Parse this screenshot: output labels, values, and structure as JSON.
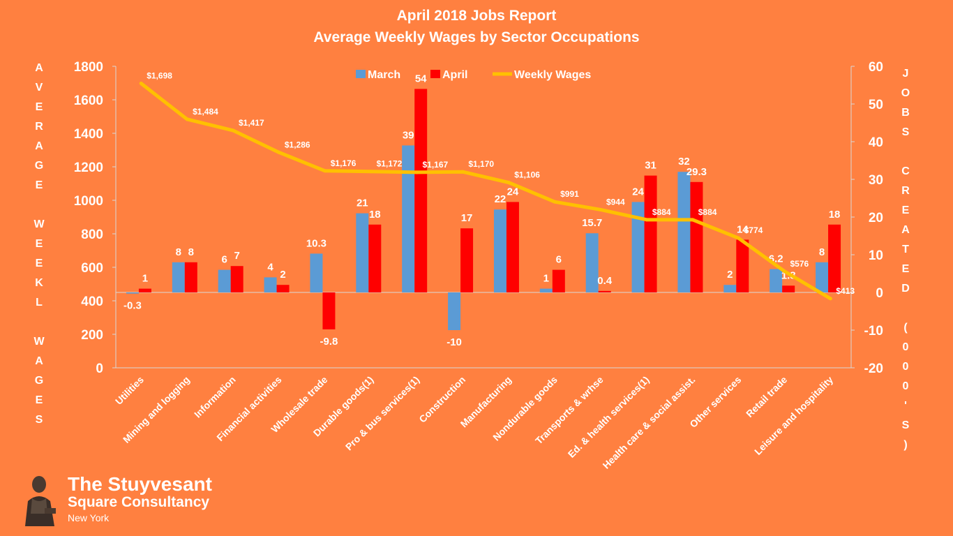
{
  "chart_data": {
    "type": "bar",
    "title": "April 2018 Jobs Report",
    "subtitle": "Average Weekly Wages by Sector Occupations",
    "ylabel_left_letters": [
      "A",
      "V",
      "E",
      "R",
      "A",
      "G",
      "E",
      "",
      "W",
      "E",
      "E",
      "K",
      "L",
      "",
      "W",
      "A",
      "G",
      "E",
      "S"
    ],
    "ylabel_right_letters": [
      "J",
      "O",
      "B",
      "S",
      "",
      "C",
      "R",
      "E",
      "A",
      "T",
      "E",
      "D",
      "",
      "(",
      "0",
      "0",
      "0",
      "'",
      "S",
      ")"
    ],
    "categories": [
      "Utilities",
      "Mining and logging",
      "Information",
      "Financial activities",
      "Wholesale trade",
      "Durable goods(1)",
      "Pro & bus services(1)",
      "Construction",
      "Manufacturing",
      "Nondurable goods",
      "Transports & wrhse",
      "Ed. & health services(1)",
      "Health care & social assist.",
      "Other services",
      "Retail trade",
      "Leisure and hospitality"
    ],
    "series": [
      {
        "name": "March",
        "axis": "right",
        "color": "#5b9bd5",
        "values": [
          -0.3,
          8,
          6,
          4,
          10.3,
          21,
          39,
          -10,
          22,
          1,
          15.7,
          24,
          32,
          2,
          6.2,
          8
        ],
        "labels": [
          "-0.3",
          "8",
          "6",
          "4",
          "10.3",
          "21",
          "39",
          "-10",
          "22",
          "1",
          "15.7",
          "24",
          "32",
          "2",
          "6.2",
          "8"
        ]
      },
      {
        "name": "April",
        "axis": "right",
        "color": "#ff0000",
        "values": [
          1,
          8,
          7,
          2,
          -9.8,
          18,
          54,
          17,
          24,
          6,
          0.4,
          31,
          29.3,
          14,
          1.8,
          18
        ],
        "labels": [
          "1",
          "8",
          "7",
          "2",
          "-9.8",
          "18",
          "54",
          "17",
          "24",
          "6",
          "0.4",
          "31",
          "29.3",
          "14",
          "1.8",
          "18"
        ]
      },
      {
        "name": "Weekly Wages",
        "axis": "left",
        "type": "line",
        "color": "#ffc000",
        "values": [
          1698,
          1484,
          1417,
          1286,
          1176,
          1172,
          1167,
          1170,
          1106,
          991,
          944,
          884,
          884,
          774,
          576,
          413
        ],
        "labels": [
          "$1,698",
          "$1,484",
          "$1,417",
          "$1,286",
          "$1,176",
          "$1,172",
          "$1,167",
          "$1,170",
          "$1,106",
          "$991",
          "$944",
          "$884",
          "$884",
          "$774",
          "$576",
          "$413"
        ]
      }
    ],
    "y_left": {
      "min": 0,
      "max": 1800,
      "ticks": [
        "0",
        "200",
        "400",
        "600",
        "800",
        "1000",
        "1200",
        "1400",
        "1600",
        "1800"
      ]
    },
    "y_right": {
      "min": -20,
      "max": 60,
      "ticks": [
        "-20",
        "-10",
        "0",
        "10",
        "20",
        "30",
        "40",
        "50",
        "60"
      ]
    },
    "legend": "top-center",
    "grid": false
  },
  "brand": {
    "name_line1": "The Stuyvesant",
    "name_line2": "Square  Consultancy",
    "location": "New York"
  }
}
